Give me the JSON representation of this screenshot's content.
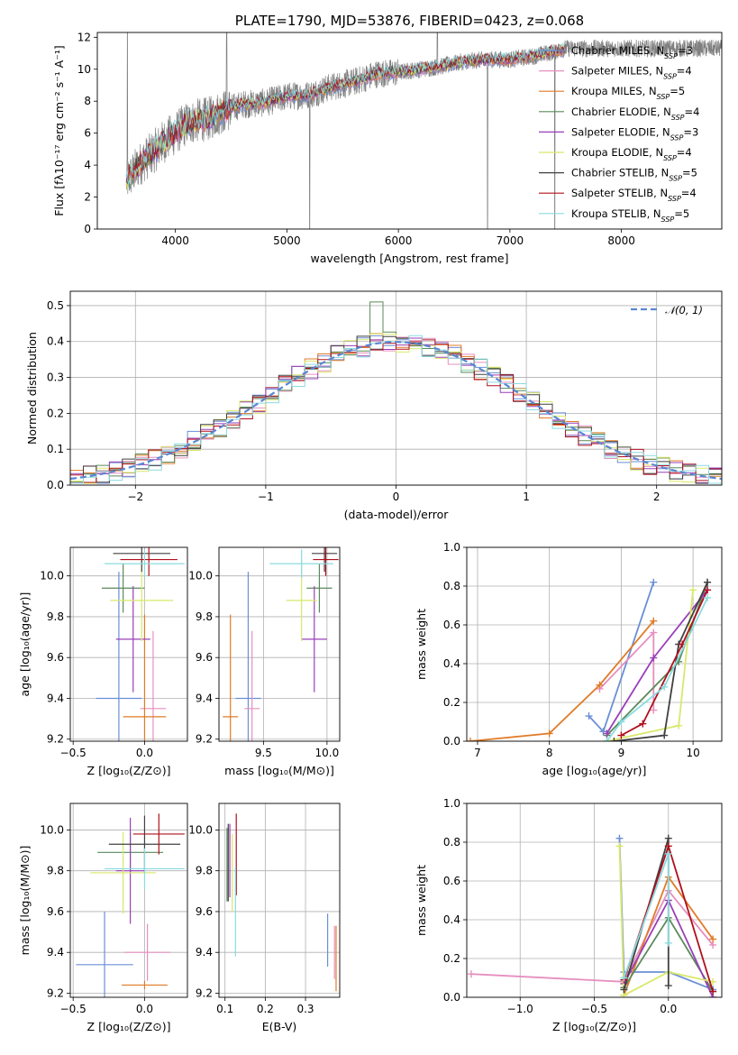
{
  "colors": {
    "chabrier_miles": "#6a8fd6",
    "salpeter_miles": "#e68fbf",
    "kroupa_miles": "#e07b28",
    "chabrier_elodie": "#5a8a5a",
    "salpeter_elodie": "#9a3fb8",
    "kroupa_elodie": "#d9e86a",
    "chabrier_stelib": "#404040",
    "salpeter_stelib": "#b0101c",
    "kroupa_stelib": "#8adbe0",
    "observed": "#808080",
    "normal": "#5b86d2",
    "grid": "#b0b0b0"
  },
  "chart_data": [
    {
      "id": "spectrum",
      "type": "line",
      "title": "PLATE=1790, MJD=53876, FIBERID=0423, z=0.068",
      "xlabel": "wavelength [Angstrom, rest frame]",
      "ylabel": "Flux [fλ10⁻¹⁷ erg cm⁻² s⁻¹ A⁻¹]",
      "xlim": [
        3300,
        8900
      ],
      "ylim": [
        0,
        12.3
      ],
      "xticks": [
        "4000",
        "5000",
        "6000",
        "7000",
        "8000"
      ],
      "yticks": [
        "0",
        "2",
        "4",
        "6",
        "8",
        "10",
        "12"
      ],
      "grid": false,
      "legend": "upper-right",
      "continuum": [
        [
          3560,
          3.0
        ],
        [
          3700,
          4.2
        ],
        [
          3800,
          4.8
        ],
        [
          3900,
          5.5
        ],
        [
          4000,
          6.0
        ],
        [
          4100,
          6.6
        ],
        [
          4200,
          6.8
        ],
        [
          4300,
          6.9
        ],
        [
          4400,
          7.3
        ],
        [
          4600,
          7.8
        ],
        [
          4800,
          7.9
        ],
        [
          5000,
          8.3
        ],
        [
          5200,
          8.4
        ],
        [
          5400,
          8.9
        ],
        [
          5600,
          9.2
        ],
        [
          5800,
          9.7
        ],
        [
          6000,
          9.8
        ],
        [
          6200,
          10.0
        ],
        [
          6400,
          10.2
        ],
        [
          6600,
          10.5
        ],
        [
          6800,
          10.6
        ],
        [
          7000,
          10.6
        ],
        [
          7200,
          10.8
        ],
        [
          7400,
          11.1
        ],
        [
          7500,
          11.3
        ]
      ],
      "series": [
        {
          "name": "Chabrier MILES, N_SSP=3",
          "color": "chabrier_miles",
          "label_main": "Chabrier MILES, N",
          "label_sub": "SSP",
          "label_tail": "=3"
        },
        {
          "name": "Salpeter MILES, N_SSP=4",
          "color": "salpeter_miles",
          "label_main": "Salpeter MILES, N",
          "label_sub": "SSP",
          "label_tail": "=4"
        },
        {
          "name": "Kroupa MILES, N_SSP=5",
          "color": "kroupa_miles",
          "label_main": "Kroupa MILES, N",
          "label_sub": "SSP",
          "label_tail": "=5"
        },
        {
          "name": "Chabrier ELODIE, N_SSP=4",
          "color": "chabrier_elodie",
          "label_main": "Chabrier ELODIE, N",
          "label_sub": "SSP",
          "label_tail": "=4"
        },
        {
          "name": "Salpeter ELODIE, N_SSP=3",
          "color": "salpeter_elodie",
          "label_main": "Salpeter ELODIE, N",
          "label_sub": "SSP",
          "label_tail": "=3"
        },
        {
          "name": "Kroupa ELODIE, N_SSP=4",
          "color": "kroupa_elodie",
          "label_main": "Kroupa ELODIE, N",
          "label_sub": "SSP",
          "label_tail": "=4"
        },
        {
          "name": "Chabrier STELIB, N_SSP=5",
          "color": "chabrier_stelib",
          "label_main": "Chabrier STELIB, N",
          "label_sub": "SSP",
          "label_tail": "=5"
        },
        {
          "name": "Salpeter STELIB, N_SSP=4",
          "color": "salpeter_stelib",
          "label_main": "Salpeter STELIB, N",
          "label_sub": "SSP",
          "label_tail": "=4"
        },
        {
          "name": "Kroupa STELIB, N_SSP=5",
          "color": "kroupa_stelib",
          "label_main": "Kroupa STELIB, N",
          "label_sub": "SSP",
          "label_tail": "=5"
        }
      ]
    },
    {
      "id": "residuals",
      "type": "line",
      "xlabel": "(data-model)/error",
      "ylabel": "Normed distribution",
      "xlim": [
        -2.5,
        2.5
      ],
      "ylim": [
        0,
        0.54
      ],
      "xticks": [
        -2,
        -1,
        0,
        1,
        2
      ],
      "xtick_labels": [
        "−2",
        "−1",
        "0",
        "1",
        "2"
      ],
      "yticks": [
        0,
        0.1,
        0.2,
        0.3,
        0.4,
        0.5
      ],
      "ytick_labels": [
        "0.0",
        "0.1",
        "0.2",
        "0.3",
        "0.4",
        "0.5"
      ],
      "grid": true,
      "bin_width": 0.1,
      "normal_label": "𝒩(0, 1)",
      "legend": "upper-right"
    },
    {
      "id": "z-age",
      "type": "scatter",
      "xlabel": "Z [log₁₀(Z/Z⊙)]",
      "ylabel": "age  [log₁₀(age/yr)]",
      "xlim": [
        -0.52,
        0.3
      ],
      "ylim": [
        9.19,
        10.14
      ],
      "xticks": [
        -0.5,
        0.0
      ],
      "xtick_labels": [
        "−0.5",
        "0.0"
      ],
      "yticks": [
        9.2,
        9.4,
        9.6,
        9.8,
        10.0
      ],
      "ytick_labels": [
        "9.2",
        "9.4",
        "9.6",
        "9.8",
        "10.0"
      ],
      "grid": true,
      "points": [
        {
          "color": "chabrier_miles",
          "x": -0.18,
          "xerr": 0.16,
          "y": 9.4,
          "yerr": 0.62
        },
        {
          "color": "salpeter_miles",
          "x": 0.06,
          "xerr": 0.09,
          "y": 9.35,
          "yerr": 0.38
        },
        {
          "color": "kroupa_miles",
          "x": 0.0,
          "xerr": 0.15,
          "y": 9.31,
          "yerr": 0.5
        },
        {
          "color": "chabrier_elodie",
          "x": -0.15,
          "xerr": 0.15,
          "y": 9.94,
          "yerr": 0.12
        },
        {
          "color": "salpeter_elodie",
          "x": -0.08,
          "xerr": 0.12,
          "y": 9.69,
          "yerr": 0.26
        },
        {
          "color": "kroupa_elodie",
          "x": -0.02,
          "xerr": 0.22,
          "y": 9.88,
          "yerr": 0.2
        },
        {
          "color": "chabrier_stelib",
          "x": -0.02,
          "xerr": 0.2,
          "y": 10.11,
          "yerr": 0.09
        },
        {
          "color": "salpeter_stelib",
          "x": 0.03,
          "xerr": 0.2,
          "y": 10.08,
          "yerr": 0.08
        },
        {
          "color": "kroupa_stelib",
          "x": 0.0,
          "xerr": 0.28,
          "y": 10.06,
          "yerr": 0.07
        }
      ]
    },
    {
      "id": "mass-age",
      "type": "scatter",
      "xlabel": "mass [log₁₀(M/M⊙)]",
      "ylabel": "",
      "xlim": [
        9.15,
        10.1
      ],
      "ylim": [
        9.19,
        10.14
      ],
      "xticks": [
        9.5,
        10.0
      ],
      "xtick_labels": [
        "9.5",
        "10.0"
      ],
      "yticks": [
        9.2,
        9.4,
        9.6,
        9.8,
        10.0
      ],
      "ytick_labels": [
        "9.2",
        "9.4",
        "9.6",
        "9.8",
        "10.0"
      ],
      "grid": true,
      "points": [
        {
          "color": "chabrier_miles",
          "x": 9.38,
          "xerr": 0.1,
          "y": 9.4,
          "yerr": 0.62
        },
        {
          "color": "salpeter_miles",
          "x": 9.41,
          "xerr": 0.06,
          "y": 9.35,
          "yerr": 0.38
        },
        {
          "color": "kroupa_miles",
          "x": 9.24,
          "xerr": 0.06,
          "y": 9.31,
          "yerr": 0.5
        },
        {
          "color": "chabrier_elodie",
          "x": 9.94,
          "xerr": 0.1,
          "y": 9.94,
          "yerr": 0.12
        },
        {
          "color": "salpeter_elodie",
          "x": 9.9,
          "xerr": 0.1,
          "y": 9.69,
          "yerr": 0.26
        },
        {
          "color": "kroupa_elodie",
          "x": 9.8,
          "xerr": 0.12,
          "y": 9.88,
          "yerr": 0.2
        },
        {
          "color": "chabrier_stelib",
          "x": 9.98,
          "xerr": 0.1,
          "y": 10.11,
          "yerr": 0.09
        },
        {
          "color": "salpeter_stelib",
          "x": 9.99,
          "xerr": 0.1,
          "y": 10.08,
          "yerr": 0.08
        },
        {
          "color": "kroupa_stelib",
          "x": 9.8,
          "xerr": 0.25,
          "y": 10.06,
          "yerr": 0.07
        }
      ]
    },
    {
      "id": "age-weight",
      "type": "line",
      "xlabel": "age  [log₁₀(age/yr)]",
      "ylabel": "mass weight",
      "xlim": [
        6.85,
        10.4
      ],
      "ylim": [
        0,
        1.0
      ],
      "xticks": [
        7,
        8,
        9,
        10
      ],
      "xtick_labels": [
        "7",
        "8",
        "9",
        "10"
      ],
      "yticks": [
        0,
        0.2,
        0.4,
        0.6,
        0.8,
        1.0
      ],
      "ytick_labels": [
        "0.0",
        "0.2",
        "0.4",
        "0.6",
        "0.8",
        "1.0"
      ],
      "grid": true,
      "lines": [
        {
          "color": "chabrier_miles",
          "points": [
            [
              8.55,
              0.13
            ],
            [
              8.75,
              0.05
            ],
            [
              9.45,
              0.82
            ]
          ]
        },
        {
          "color": "salpeter_miles",
          "points": [
            [
              8.7,
              0.27
            ],
            [
              9.45,
              0.56
            ],
            [
              9.45,
              0.16
            ]
          ]
        },
        {
          "color": "kroupa_miles",
          "points": [
            [
              6.9,
              0.0
            ],
            [
              8.0,
              0.04
            ],
            [
              8.7,
              0.29
            ],
            [
              9.45,
              0.62
            ]
          ]
        },
        {
          "color": "chabrier_elodie",
          "points": [
            [
              8.8,
              0.03
            ],
            [
              9.8,
              0.41
            ],
            [
              10.2,
              0.82
            ]
          ]
        },
        {
          "color": "salpeter_elodie",
          "points": [
            [
              8.8,
              0.04
            ],
            [
              9.45,
              0.43
            ],
            [
              10.2,
              0.78
            ]
          ]
        },
        {
          "color": "kroupa_elodie",
          "points": [
            [
              8.8,
              0.0
            ],
            [
              9.8,
              0.08
            ],
            [
              10.0,
              0.78
            ]
          ]
        },
        {
          "color": "chabrier_stelib",
          "points": [
            [
              8.9,
              0.0
            ],
            [
              9.6,
              0.03
            ],
            [
              9.8,
              0.5
            ],
            [
              10.2,
              0.82
            ]
          ]
        },
        {
          "color": "salpeter_stelib",
          "points": [
            [
              9.0,
              0.03
            ],
            [
              9.3,
              0.09
            ],
            [
              9.85,
              0.5
            ],
            [
              10.2,
              0.78
            ]
          ]
        },
        {
          "color": "kroupa_stelib",
          "points": [
            [
              8.8,
              0.0
            ],
            [
              9.0,
              0.1
            ],
            [
              9.6,
              0.28
            ],
            [
              10.2,
              0.74
            ]
          ]
        }
      ]
    },
    {
      "id": "z-mass",
      "type": "scatter",
      "xlabel": "Z [log₁₀(Z/Z⊙)]",
      "ylabel": "mass [log₁₀(M/M⊙)]",
      "xlim": [
        -0.52,
        0.3
      ],
      "ylim": [
        9.18,
        10.13
      ],
      "xticks": [
        -0.5,
        0.0
      ],
      "xtick_labels": [
        "−0.5",
        "0.0"
      ],
      "yticks": [
        9.2,
        9.4,
        9.6,
        9.8,
        10.0
      ],
      "ytick_labels": [
        "9.2",
        "9.4",
        "9.6",
        "9.8",
        "10.0"
      ],
      "grid": true,
      "points": [
        {
          "color": "chabrier_miles",
          "x": -0.28,
          "xerr": 0.2,
          "y": 9.34,
          "yerr": 0.26
        },
        {
          "color": "salpeter_miles",
          "x": 0.02,
          "xerr": 0.16,
          "y": 9.4,
          "yerr": 0.14
        },
        {
          "color": "kroupa_miles",
          "x": 0.0,
          "xerr": 0.16,
          "y": 9.24,
          "yerr": 0.02
        },
        {
          "color": "chabrier_elodie",
          "x": -0.1,
          "xerr": 0.23,
          "y": 9.89,
          "yerr": 0.1
        },
        {
          "color": "salpeter_elodie",
          "x": -0.1,
          "xerr": 0.1,
          "y": 9.8,
          "yerr": 0.26
        },
        {
          "color": "kroupa_elodie",
          "x": -0.15,
          "xerr": 0.23,
          "y": 9.79,
          "yerr": 0.2
        },
        {
          "color": "chabrier_stelib",
          "x": 0.0,
          "xerr": 0.25,
          "y": 9.93,
          "yerr": 0.14
        },
        {
          "color": "salpeter_stelib",
          "x": 0.1,
          "xerr": 0.18,
          "y": 9.98,
          "yerr": 0.1
        },
        {
          "color": "kroupa_stelib",
          "x": 0.0,
          "xerr": 0.28,
          "y": 9.81,
          "yerr": 0.1
        }
      ]
    },
    {
      "id": "ebv-mass",
      "type": "scatter",
      "xlabel": "E(B-V)",
      "ylabel": "",
      "xlim": [
        0.085,
        0.385
      ],
      "ylim": [
        9.18,
        10.13
      ],
      "xticks": [
        0.1,
        0.2,
        0.3
      ],
      "xtick_labels": [
        "0.1",
        "0.2",
        "0.3"
      ],
      "yticks": [
        9.2,
        9.4,
        9.6,
        9.8,
        10.0
      ],
      "ytick_labels": [
        "9.2",
        "9.4",
        "9.6",
        "9.8",
        "10.0"
      ],
      "grid": true,
      "points": [
        {
          "color": "chabrier_miles",
          "x": 0.355,
          "xerr": 0,
          "y": 9.46,
          "yerr": 0.13
        },
        {
          "color": "salpeter_miles",
          "x": 0.372,
          "xerr": 0,
          "y": 9.4,
          "yerr": 0.13
        },
        {
          "color": "kroupa_miles",
          "x": 0.376,
          "xerr": 0,
          "y": 9.37,
          "yerr": 0.16
        },
        {
          "color": "chabrier_elodie",
          "x": 0.105,
          "xerr": 0,
          "y": 9.83,
          "yerr": 0.18
        },
        {
          "color": "salpeter_elodie",
          "x": 0.112,
          "xerr": 0,
          "y": 9.85,
          "yerr": 0.18
        },
        {
          "color": "kroupa_elodie",
          "x": 0.118,
          "xerr": 0,
          "y": 9.79,
          "yerr": 0.19
        },
        {
          "color": "chabrier_stelib",
          "x": 0.108,
          "xerr": 0,
          "y": 9.84,
          "yerr": 0.19
        },
        {
          "color": "salpeter_stelib",
          "x": 0.128,
          "xerr": 0,
          "y": 9.88,
          "yerr": 0.2
        },
        {
          "color": "kroupa_stelib",
          "x": 0.126,
          "xerr": 0,
          "y": 9.6,
          "yerr": 0.22
        }
      ]
    },
    {
      "id": "z-weight",
      "type": "line",
      "xlabel": "Z [log₁₀(Z/Z⊙)]",
      "ylabel": "mass weight",
      "xlim": [
        -1.36,
        0.36
      ],
      "ylim": [
        0,
        1.0
      ],
      "xticks": [
        -1.0,
        -0.5,
        0.0
      ],
      "xtick_labels": [
        "−1.0",
        "−0.5",
        "0.0"
      ],
      "yticks": [
        0,
        0.2,
        0.4,
        0.6,
        0.8,
        1.0
      ],
      "ytick_labels": [
        "0.0",
        "0.2",
        "0.4",
        "0.6",
        "0.8",
        "1.0"
      ],
      "grid": true,
      "lines": [
        {
          "color": "chabrier_miles",
          "points": [
            [
              -0.33,
              0.82
            ],
            [
              -0.3,
              0.13
            ],
            [
              0.0,
              0.13
            ],
            [
              0.3,
              0.04
            ]
          ]
        },
        {
          "color": "salpeter_miles",
          "points": [
            [
              -1.33,
              0.12
            ],
            [
              -0.3,
              0.08
            ],
            [
              0.0,
              0.55
            ],
            [
              0.3,
              0.27
            ]
          ]
        },
        {
          "color": "kroupa_miles",
          "points": [
            [
              -0.3,
              0.01
            ],
            [
              0.0,
              0.62
            ],
            [
              0.3,
              0.3
            ]
          ]
        },
        {
          "color": "chabrier_elodie",
          "points": [
            [
              -0.3,
              0.05
            ],
            [
              0.0,
              0.41
            ],
            [
              0.3,
              0.03
            ]
          ]
        },
        {
          "color": "salpeter_elodie",
          "points": [
            [
              -0.3,
              0.07
            ],
            [
              0.0,
              0.5
            ],
            [
              0.3,
              0.0
            ]
          ]
        },
        {
          "color": "kroupa_elodie",
          "points": [
            [
              -0.33,
              0.78
            ],
            [
              -0.3,
              0.01
            ],
            [
              0.0,
              0.13
            ],
            [
              0.3,
              0.08
            ]
          ]
        },
        {
          "color": "chabrier_stelib",
          "points": [
            [
              -0.3,
              0.04
            ],
            [
              0.0,
              0.82
            ],
            [
              0.0,
              0.06
            ]
          ]
        },
        {
          "color": "salpeter_stelib",
          "points": [
            [
              -0.3,
              0.09
            ],
            [
              0.0,
              0.78
            ],
            [
              0.3,
              0.03
            ]
          ]
        },
        {
          "color": "kroupa_stelib",
          "points": [
            [
              -0.3,
              0.1
            ],
            [
              0.0,
              0.74
            ],
            [
              0.0,
              0.28
            ]
          ]
        }
      ]
    }
  ]
}
